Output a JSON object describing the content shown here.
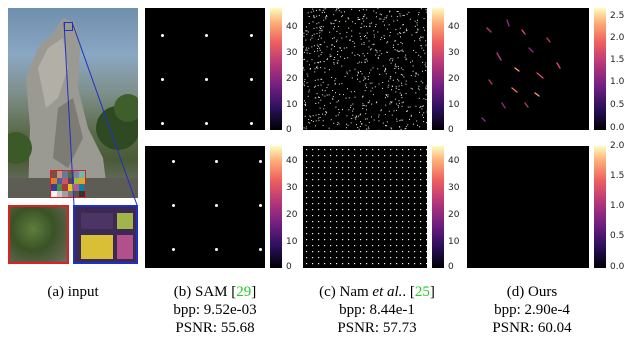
{
  "captions": {
    "input": "(a) input",
    "sam_method": "(b) SAM [",
    "sam_ref": "29",
    "sam_close": "]",
    "sam_bpp": "bpp: 9.52e-03",
    "sam_psnr": "PSNR: 55.68",
    "nam_method": "(c) Nam ",
    "nam_etal": "et al.",
    "nam_mid": ". [",
    "nam_ref": "25",
    "nam_close": "]",
    "nam_bpp": "bpp: 8.44e-1",
    "nam_psnr": "PSNR: 57.73",
    "ours_method": "(d) Ours",
    "ours_bpp": "bpp: 2.90e-4",
    "ours_psnr": "PSNR: 60.04"
  },
  "colorbars": {
    "sam_top": [
      "40",
      "30",
      "20",
      "10",
      "0"
    ],
    "sam_bottom": [
      "40",
      "30",
      "20",
      "10",
      "0"
    ],
    "nam_top": [
      "40",
      "30",
      "20",
      "10",
      "0"
    ],
    "nam_bottom": [
      "40",
      "30",
      "20",
      "10",
      "0"
    ],
    "ours_top": [
      "2.5",
      "2.0",
      "1.5",
      "1.0",
      "0.5",
      "0.0"
    ],
    "ours_bottom": [
      "2.0",
      "1.5",
      "1.0",
      "0.5",
      "0.0"
    ]
  },
  "colors": {
    "inset_red": "#e02020",
    "inset_blue": "#2030c0",
    "reference_green": "#22cc22",
    "colormap": "magma"
  }
}
